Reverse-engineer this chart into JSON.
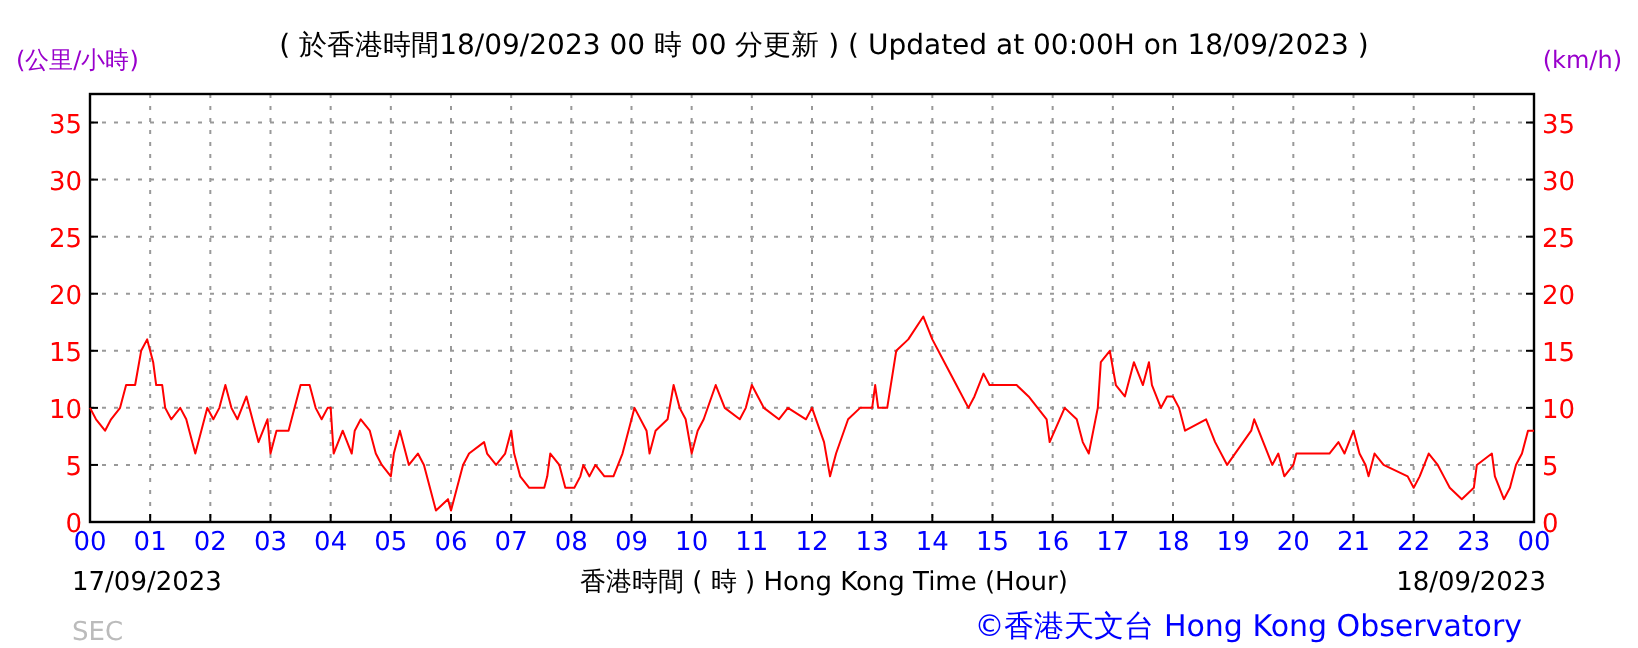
{
  "chart_data": {
    "type": "line",
    "title": "( 於香港時間18/09/2023 00 時 00 分更新 ) ( Updated at 00:00H on 18/09/2023 )",
    "xlabel": "香港時間 ( 時 )  Hong Kong Time (Hour)",
    "ylabel": "(公里/小時)",
    "y2label": "(km/h)",
    "annotations": [
      "17/09/2023",
      "18/09/2023",
      "SEC",
      "©香港天文台 Hong Kong Observatory"
    ],
    "xlim": [
      0,
      24
    ],
    "ylim": [
      0,
      37.5
    ],
    "y2lim": [
      0,
      37.5
    ],
    "xticks": [
      {
        "value": 0,
        "label": "00"
      },
      {
        "value": 1,
        "label": "01"
      },
      {
        "value": 2,
        "label": "02"
      },
      {
        "value": 3,
        "label": "03"
      },
      {
        "value": 4,
        "label": "04"
      },
      {
        "value": 5,
        "label": "05"
      },
      {
        "value": 6,
        "label": "06"
      },
      {
        "value": 7,
        "label": "07"
      },
      {
        "value": 8,
        "label": "08"
      },
      {
        "value": 9,
        "label": "09"
      },
      {
        "value": 10,
        "label": "10"
      },
      {
        "value": 11,
        "label": "11"
      },
      {
        "value": 12,
        "label": "12"
      },
      {
        "value": 13,
        "label": "13"
      },
      {
        "value": 14,
        "label": "14"
      },
      {
        "value": 15,
        "label": "15"
      },
      {
        "value": 16,
        "label": "16"
      },
      {
        "value": 17,
        "label": "17"
      },
      {
        "value": 18,
        "label": "18"
      },
      {
        "value": 19,
        "label": "19"
      },
      {
        "value": 20,
        "label": "20"
      },
      {
        "value": 21,
        "label": "21"
      },
      {
        "value": 22,
        "label": "22"
      },
      {
        "value": 23,
        "label": "23"
      },
      {
        "value": 24,
        "label": "00"
      }
    ],
    "yticks": [
      0,
      5,
      10,
      15,
      20,
      25,
      30,
      35
    ],
    "y2ticks": [
      0,
      5,
      10,
      15,
      20,
      25,
      30,
      35
    ],
    "grid": true,
    "line_style": "solid",
    "marker": "none",
    "x": [
      0,
      0.1,
      0.25,
      0.35,
      0.5,
      0.6,
      0.75,
      0.85,
      0.95,
      1.05,
      1.1,
      1.2,
      1.25,
      1.35,
      1.5,
      1.6,
      1.65,
      1.75,
      1.85,
      1.95,
      2.05,
      2.15,
      2.25,
      2.35,
      2.45,
      2.6,
      2.7,
      2.8,
      2.95,
      3.0,
      3.1,
      3.3,
      3.4,
      3.5,
      3.65,
      3.75,
      3.85,
      3.95,
      4.0,
      4.05,
      4.2,
      4.35,
      4.4,
      4.5,
      4.65,
      4.75,
      4.85,
      5.0,
      5.05,
      5.15,
      5.3,
      5.45,
      5.55,
      5.65,
      5.75,
      5.95,
      6.0,
      6.1,
      6.2,
      6.3,
      6.55,
      6.6,
      6.75,
      6.9,
      7.0,
      7.05,
      7.15,
      7.3,
      7.55,
      7.6,
      7.65,
      7.8,
      7.9,
      8.05,
      8.15,
      8.2,
      8.3,
      8.4,
      8.55,
      8.7,
      8.85,
      8.95,
      9.05,
      9.25,
      9.3,
      9.4,
      9.6,
      9.7,
      9.8,
      9.9,
      10.0,
      10.1,
      10.2,
      10.4,
      10.55,
      10.8,
      10.9,
      11.0,
      11.1,
      11.2,
      11.45,
      11.6,
      11.9,
      12.0,
      12.2,
      12.3,
      12.4,
      12.6,
      12.8,
      13.0,
      13.05,
      13.1,
      13.25,
      13.4,
      13.6,
      13.85,
      14.0,
      14.2,
      14.4,
      14.6,
      14.7,
      14.85,
      14.95,
      15.4,
      15.6,
      15.75,
      15.9,
      15.95,
      16.2,
      16.4,
      16.5,
      16.6,
      16.75,
      16.8,
      16.95,
      17.05,
      17.2,
      17.35,
      17.5,
      17.6,
      17.65,
      17.8,
      17.9,
      18.0,
      18.1,
      18.2,
      18.55,
      18.7,
      18.9,
      19.3,
      19.35,
      19.5,
      19.65,
      19.75,
      19.85,
      20.0,
      20.05,
      20.6,
      20.75,
      20.85,
      21.0,
      21.1,
      21.2,
      21.25,
      21.35,
      21.5,
      21.9,
      22.0,
      22.1,
      22.25,
      22.4,
      22.5,
      22.6,
      22.8,
      23.0,
      23.05,
      23.3,
      23.35,
      23.5,
      23.6,
      23.7,
      23.8,
      23.9,
      24.0
    ],
    "series": [
      {
        "color": "#ff0000",
        "values": [
          10,
          9,
          8,
          9,
          10,
          12,
          12,
          15,
          16,
          14,
          12,
          12,
          10,
          9,
          10,
          9,
          8,
          6,
          8,
          10,
          9,
          10,
          12,
          10,
          9,
          11,
          9,
          7,
          9,
          6,
          8,
          8,
          10,
          12,
          12,
          10,
          9,
          10,
          10,
          6,
          8,
          6,
          8,
          9,
          8,
          6,
          5,
          4,
          6,
          8,
          5,
          6,
          5,
          3,
          1,
          2,
          1,
          3,
          5,
          6,
          7,
          6,
          5,
          6,
          8,
          6,
          4,
          3,
          3,
          4,
          6,
          5,
          3,
          3,
          4,
          5,
          4,
          5,
          4,
          4,
          6,
          8,
          10,
          8,
          6,
          8,
          9,
          12,
          10,
          9,
          6,
          8,
          9,
          12,
          10,
          9,
          10,
          12,
          11,
          10,
          9,
          10,
          9,
          10,
          7,
          4,
          6,
          9,
          10,
          10,
          12,
          10,
          10,
          15,
          16,
          18,
          16,
          14,
          12,
          10,
          11,
          13,
          12,
          12,
          11,
          10,
          9,
          7,
          10,
          9,
          7,
          6,
          10,
          14,
          15,
          12,
          11,
          14,
          12,
          14,
          12,
          10,
          11,
          11,
          10,
          8,
          9,
          7,
          5,
          8,
          9,
          7,
          5,
          6,
          4,
          5,
          6,
          6,
          7,
          6,
          8,
          6,
          5,
          4,
          6,
          5,
          4,
          3,
          4,
          6,
          5,
          4,
          3,
          2,
          3,
          5,
          6,
          4,
          2,
          3,
          5,
          6,
          8,
          8
        ]
      }
    ]
  }
}
